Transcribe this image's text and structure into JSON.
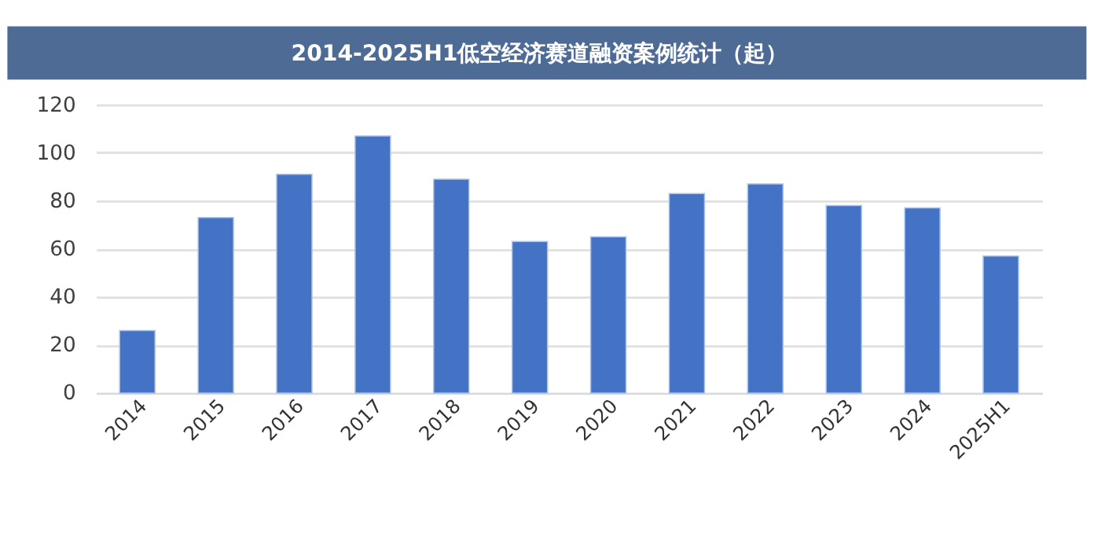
{
  "chart_data": {
    "type": "bar",
    "title": "2014-2025H1低空经济赛道融资案例统计（起）",
    "categories": [
      "2014",
      "2015",
      "2016",
      "2017",
      "2018",
      "2019",
      "2020",
      "2021",
      "2022",
      "2023",
      "2024",
      "2025H1"
    ],
    "values": [
      26,
      73,
      91,
      107,
      89,
      63,
      65,
      83,
      87,
      78,
      77,
      57
    ],
    "color": "#4472c4",
    "ylim": [
      0,
      120
    ],
    "yticks": [
      0,
      20,
      40,
      60,
      80,
      100,
      120
    ],
    "grid": "y"
  }
}
